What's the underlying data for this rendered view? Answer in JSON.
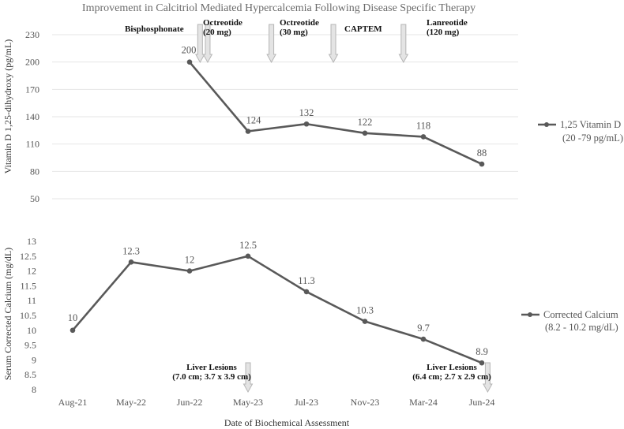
{
  "colors": {
    "line": "#595959",
    "grid": "#e6e6e6",
    "arrow_fill": "#e4e4e4",
    "arrow_stroke": "#b5b5b5"
  },
  "chart_data": {
    "type": "line",
    "title": "Improvement in Calcitriol Mediated Hypercalcemia Following Disease Specific Therapy",
    "xlabel": "Date of Biochemical Assessment",
    "categories": [
      "Aug-21",
      "May-22",
      "Jun-22",
      "May-23",
      "Jul-23",
      "Nov-23",
      "Mar-24",
      "Jun-24"
    ],
    "panels": [
      {
        "id": "vitd",
        "ylabel": "Vitamin D 1,25-dihydroxy (pg/mL)",
        "ylim": [
          50,
          230
        ],
        "yticks": [
          50,
          80,
          110,
          140,
          170,
          200,
          230
        ],
        "grid": true,
        "series": [
          {
            "name": "1,25 Vitamin D",
            "range_note": "(20 -79 pg/mL)",
            "values": [
              null,
              null,
              200,
              124,
              132,
              122,
              118,
              88
            ],
            "labels": [
              "",
              "",
              "200",
              "124",
              "132",
              "122",
              "118",
              "88"
            ]
          }
        ],
        "annotations": [
          {
            "lines": [
              "Bisphosphonate"
            ],
            "arrow_at": 2.18
          },
          {
            "lines": [
              "Octreotide",
              "(20 mg)"
            ],
            "arrow_at": 2.31
          },
          {
            "lines": [
              "Octreotide",
              "(30 mg)"
            ],
            "arrow_at": 3.4
          },
          {
            "lines": [
              "CAPTEM"
            ],
            "arrow_at": 4.46
          },
          {
            "lines": [
              "Lanreotide",
              "(120 mg)"
            ],
            "arrow_at": 5.66
          }
        ]
      },
      {
        "id": "calcium",
        "ylabel": "Serum Corrected Calcium (mg/dL)",
        "ylim": [
          8,
          13
        ],
        "yticks": [
          8,
          8.5,
          9,
          9.5,
          10,
          10.5,
          11,
          11.5,
          12,
          12.5,
          13
        ],
        "ytick_labels": [
          "8",
          "8.5",
          "9",
          "9.5",
          "10",
          "10.5",
          "11",
          "11.5",
          "12",
          "12.5",
          "13"
        ],
        "grid": false,
        "series": [
          {
            "name": "Corrected Calcium",
            "range_note": "(8.2 - 10.2 mg/dL)",
            "values": [
              10,
              12.3,
              12,
              12.5,
              11.3,
              10.3,
              9.7,
              8.9
            ],
            "labels": [
              "10",
              "12.3",
              "12",
              "12.5",
              "11.3",
              "10.3",
              "9.7",
              "8.9"
            ]
          }
        ],
        "annotations": [
          {
            "lines": [
              "Liver Lesions",
              "(7.0 cm; 3.7 x 3.9 cm)"
            ],
            "arrow_at": 3.0
          },
          {
            "lines": [
              "Liver Lesions",
              "(6.4 cm; 2.7 x 2.9 cm)"
            ],
            "arrow_at": 7.1
          }
        ]
      }
    ]
  }
}
